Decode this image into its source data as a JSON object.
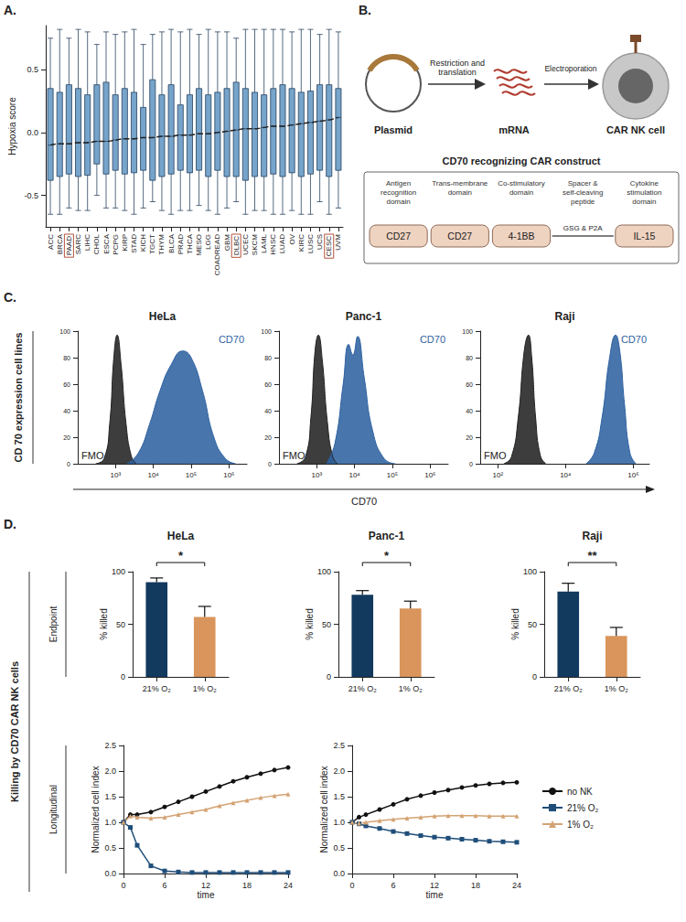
{
  "panel_letters": [
    "A.",
    "B.",
    "C.",
    "D."
  ],
  "diagram": {
    "steps": [
      "Plasmid",
      "mRNA",
      "CAR NK cell"
    ],
    "arrows": [
      "Restriction and translation",
      "Electroporation"
    ],
    "construct": {
      "title": "CD70 recognizing CAR construct",
      "domains": [
        {
          "header": "Antigen recognition domain",
          "label": "CD27",
          "shape": "box"
        },
        {
          "header": "Trans-membrane domain",
          "label": "CD27",
          "shape": "box"
        },
        {
          "header": "Co-stimulatory domain",
          "label": "4-1BB",
          "shape": "box"
        },
        {
          "header": "Spacer & self-cleaving peptide",
          "label": "GSG & P2A",
          "shape": "line"
        },
        {
          "header": "Cytokine stimulation domain",
          "label": "IL-15",
          "shape": "box"
        }
      ]
    }
  },
  "labels": {
    "c_row": "CD 70 expression cell lines",
    "c_x_axis": "CD70",
    "d_row": "Killing by CD70 CAR NK cells",
    "d_endpoint": "Endpoint",
    "d_longitudinal": "Longitudinal"
  },
  "chart_data": [
    {
      "type": "boxplot",
      "y_label": "Hypoxia score",
      "color": "#4a86b8",
      "line_style": "dashed",
      "categories": [
        "ACC",
        "BRCA",
        "PAAD",
        "SARC",
        "LIHC",
        "CHOL",
        "ESCA",
        "PCPG",
        "KIRP",
        "STAD",
        "KICH",
        "TGCT",
        "THYM",
        "BLCA",
        "PRAD",
        "THCA",
        "MESO",
        "LGG",
        "COADREAD",
        "GBM",
        "DLBC",
        "UCEC",
        "SKCM",
        "LAML",
        "HNSC",
        "LUAD",
        "OV",
        "KIRC",
        "LUSC",
        "UCS",
        "CESC",
        "UVM"
      ],
      "highlighted": [
        "PAAD",
        "DLBC",
        "CESC"
      ],
      "boxes": [
        [
          -0.65,
          -0.38,
          -0.1,
          0.35,
          0.75
        ],
        [
          -0.65,
          -0.35,
          -0.09,
          0.32,
          0.82
        ],
        [
          -0.6,
          -0.33,
          -0.09,
          0.38,
          0.75
        ],
        [
          -0.62,
          -0.35,
          -0.08,
          0.35,
          0.82
        ],
        [
          -0.62,
          -0.34,
          -0.08,
          0.3,
          0.8
        ],
        [
          -0.5,
          -0.25,
          -0.07,
          0.38,
          0.7
        ],
        [
          -0.6,
          -0.33,
          -0.07,
          0.4,
          0.8
        ],
        [
          -0.6,
          -0.3,
          -0.06,
          0.3,
          0.78
        ],
        [
          -0.62,
          -0.33,
          -0.05,
          0.35,
          0.8
        ],
        [
          -0.65,
          -0.32,
          -0.05,
          0.32,
          0.82
        ],
        [
          -0.6,
          -0.3,
          -0.04,
          0.2,
          0.7
        ],
        [
          -0.55,
          -0.38,
          -0.04,
          0.42,
          0.78
        ],
        [
          -0.62,
          -0.35,
          -0.03,
          0.3,
          0.8
        ],
        [
          -0.65,
          -0.33,
          -0.03,
          0.38,
          0.82
        ],
        [
          -0.62,
          -0.3,
          -0.02,
          0.22,
          0.8
        ],
        [
          -0.62,
          -0.32,
          -0.02,
          0.3,
          0.82
        ],
        [
          -0.58,
          -0.3,
          -0.01,
          0.35,
          0.78
        ],
        [
          -0.62,
          -0.35,
          -0.01,
          0.3,
          0.82
        ],
        [
          -0.65,
          -0.3,
          0.0,
          0.32,
          0.8
        ],
        [
          -0.6,
          -0.35,
          0.01,
          0.35,
          0.8
        ],
        [
          -0.55,
          -0.35,
          0.02,
          0.4,
          0.75
        ],
        [
          -0.65,
          -0.38,
          0.03,
          0.35,
          0.82
        ],
        [
          -0.62,
          -0.35,
          0.03,
          0.32,
          0.82
        ],
        [
          -0.62,
          -0.35,
          0.04,
          0.3,
          0.82
        ],
        [
          -0.65,
          -0.33,
          0.05,
          0.35,
          0.82
        ],
        [
          -0.65,
          -0.35,
          0.05,
          0.38,
          0.82
        ],
        [
          -0.62,
          -0.32,
          0.06,
          0.35,
          0.8
        ],
        [
          -0.65,
          -0.35,
          0.07,
          0.32,
          0.82
        ],
        [
          -0.65,
          -0.33,
          0.08,
          0.33,
          0.82
        ],
        [
          -0.55,
          -0.3,
          0.09,
          0.38,
          0.78
        ],
        [
          -0.65,
          -0.35,
          0.1,
          0.38,
          0.82
        ],
        [
          -0.6,
          -0.3,
          0.12,
          0.35,
          0.8
        ]
      ],
      "ylim": [
        -0.75,
        0.85
      ],
      "yticks": [
        -0.5,
        {
          "value": 0,
          "label": "0.0"
        },
        0.5
      ]
    },
    {
      "type": "area",
      "title": "HeLa",
      "log": "x",
      "xlim": [
        100,
        3000000
      ],
      "xticks": [
        {
          "value": 1000,
          "label": "10³"
        },
        {
          "value": 10000,
          "label": "10⁴"
        },
        {
          "value": 100000,
          "label": "10⁵"
        },
        {
          "value": 1000000,
          "label": "10⁶"
        }
      ],
      "ylim": [
        0,
        100
      ],
      "yticks": [
        0,
        20,
        40,
        60,
        80,
        100
      ],
      "series": [
        {
          "name": "FMO",
          "color": "#222222",
          "x": [
            300,
            500,
            700,
            900,
            1100,
            1400,
            1900,
            2600,
            3500
          ],
          "values": [
            0,
            4,
            30,
            80,
            97,
            75,
            30,
            6,
            0
          ]
        },
        {
          "name": "CD70",
          "color": "#2f62a0",
          "x": [
            2000,
            4000,
            8000,
            15000,
            30000,
            60000,
            100000,
            200000,
            400000,
            800000,
            1500000
          ],
          "values": [
            0,
            8,
            30,
            55,
            75,
            85,
            80,
            55,
            20,
            4,
            0
          ]
        }
      ]
    },
    {
      "type": "area",
      "title": "Panc-1",
      "log": "x",
      "xlim": [
        100,
        3000000
      ],
      "xticks": [
        {
          "value": 1000,
          "label": "10³"
        },
        {
          "value": 10000,
          "label": "10⁴"
        },
        {
          "value": 100000,
          "label": "10⁵"
        },
        {
          "value": 1000000,
          "label": "10⁶"
        }
      ],
      "ylim": [
        0,
        100
      ],
      "yticks": [
        0,
        20,
        40,
        60,
        80,
        100
      ],
      "series": [
        {
          "name": "FMO",
          "color": "#222222",
          "x": [
            300,
            500,
            700,
            900,
            1100,
            1400,
            1900,
            2600,
            3500
          ],
          "values": [
            0,
            5,
            35,
            85,
            97,
            78,
            32,
            6,
            0
          ]
        },
        {
          "name": "CD70",
          "color": "#2f62a0",
          "x": [
            1800,
            3000,
            5000,
            7000,
            9000,
            12000,
            18000,
            30000,
            60000,
            120000
          ],
          "values": [
            0,
            15,
            60,
            90,
            82,
            96,
            65,
            25,
            4,
            0
          ]
        }
      ]
    },
    {
      "type": "area",
      "title": "Raji",
      "log": "x",
      "xlim": [
        30,
        3000000
      ],
      "xticks": [
        {
          "value": 100,
          "label": "10²"
        },
        {
          "value": 10000,
          "label": "10⁴"
        },
        {
          "value": 1000000,
          "label": "10⁶"
        }
      ],
      "ylim": [
        0,
        100
      ],
      "yticks": [
        0,
        20,
        40,
        60,
        80,
        100
      ],
      "series": [
        {
          "name": "FMO",
          "color": "#222222",
          "x": [
            150,
            250,
            400,
            600,
            800,
            1000,
            1300,
            1800,
            2600
          ],
          "values": [
            0,
            5,
            35,
            85,
            97,
            80,
            35,
            6,
            0
          ]
        },
        {
          "name": "CD70",
          "color": "#2f62a0",
          "x": [
            40000,
            70000,
            120000,
            200000,
            300000,
            400000,
            550000,
            800000,
            1200000
          ],
          "values": [
            0,
            8,
            35,
            80,
            97,
            85,
            45,
            8,
            0
          ]
        }
      ]
    },
    {
      "type": "bar",
      "title": "HeLa",
      "y_label": "% killed",
      "categories": [
        "21% O₂",
        "1% O₂"
      ],
      "values": [
        90,
        57
      ],
      "errors": [
        4,
        10
      ],
      "colors": [
        "#12395e",
        "#d9955b"
      ],
      "significance": "*",
      "ylim": [
        0,
        100
      ],
      "yticks": [
        0,
        50,
        100
      ]
    },
    {
      "type": "bar",
      "title": "Panc-1",
      "y_label": "% killed",
      "categories": [
        "21% O₂",
        "1% O₂"
      ],
      "values": [
        78,
        65
      ],
      "errors": [
        4,
        7
      ],
      "colors": [
        "#12395e",
        "#d9955b"
      ],
      "significance": "*",
      "ylim": [
        0,
        100
      ],
      "yticks": [
        0,
        50,
        100
      ]
    },
    {
      "type": "bar",
      "title": "Raji",
      "y_label": "% killed",
      "categories": [
        "21% O₂",
        "1% O₂"
      ],
      "values": [
        81,
        39
      ],
      "errors": [
        8,
        8
      ],
      "colors": [
        "#12395e",
        "#d9955b"
      ],
      "significance": "**",
      "ylim": [
        0,
        100
      ],
      "yticks": [
        0,
        50,
        100
      ]
    },
    {
      "type": "line",
      "x_label": "time",
      "y_label": "Normalized cell index",
      "x": [
        0,
        1,
        2,
        4,
        6,
        8,
        10,
        12,
        14,
        16,
        18,
        20,
        22,
        24
      ],
      "xlim": [
        0,
        24
      ],
      "xticks": [
        0,
        6,
        12,
        18,
        24
      ],
      "ylim": [
        0,
        2.5
      ],
      "yticks": [
        {
          "value": 0,
          "label": "0.0"
        },
        0.5,
        {
          "value": 1,
          "label": "1.0"
        },
        1.5,
        {
          "value": 2,
          "label": "2.0"
        },
        2.5
      ],
      "series": [
        {
          "name": "no NK",
          "color": "#111111",
          "marker": "circle",
          "values": [
            1.0,
            1.15,
            1.15,
            1.2,
            1.3,
            1.4,
            1.5,
            1.6,
            1.7,
            1.8,
            1.88,
            1.95,
            2.02,
            2.07
          ]
        },
        {
          "name": "21% O₂",
          "color": "#1f4e79",
          "marker": "square",
          "values": [
            1.0,
            0.9,
            0.55,
            0.15,
            0.05,
            0.03,
            0.02,
            0.02,
            0.02,
            0.02,
            0.02,
            0.02,
            0.02,
            0.02
          ]
        },
        {
          "name": "1% O₂",
          "color": "#d4a373",
          "marker": "triangle",
          "values": [
            1.0,
            1.12,
            1.1,
            1.08,
            1.1,
            1.15,
            1.2,
            1.25,
            1.32,
            1.38,
            1.43,
            1.48,
            1.52,
            1.55
          ]
        }
      ]
    },
    {
      "type": "line",
      "x_label": "time",
      "y_label": "Normalized cell index",
      "legend": "right",
      "x": [
        0,
        1,
        2,
        4,
        6,
        8,
        10,
        12,
        14,
        16,
        18,
        20,
        22,
        24
      ],
      "xlim": [
        0,
        24
      ],
      "xticks": [
        0,
        6,
        12,
        18,
        24
      ],
      "ylim": [
        0,
        2.5
      ],
      "yticks": [
        {
          "value": 0,
          "label": "0.0"
        },
        0.5,
        {
          "value": 1,
          "label": "1.0"
        },
        1.5,
        {
          "value": 2,
          "label": "2.0"
        },
        2.5
      ],
      "series": [
        {
          "name": "no NK",
          "color": "#111111",
          "marker": "circle",
          "values": [
            1.0,
            1.1,
            1.15,
            1.25,
            1.35,
            1.45,
            1.52,
            1.58,
            1.63,
            1.68,
            1.72,
            1.75,
            1.77,
            1.78
          ]
        },
        {
          "name": "21% O₂",
          "color": "#1f4e79",
          "marker": "square",
          "values": [
            1.0,
            0.97,
            0.93,
            0.88,
            0.82,
            0.78,
            0.74,
            0.71,
            0.69,
            0.67,
            0.65,
            0.63,
            0.62,
            0.61
          ]
        },
        {
          "name": "1% O₂",
          "color": "#d4a373",
          "marker": "triangle",
          "values": [
            1.0,
            0.98,
            1.0,
            1.03,
            1.06,
            1.08,
            1.1,
            1.12,
            1.13,
            1.13,
            1.13,
            1.12,
            1.12,
            1.12
          ]
        }
      ]
    }
  ]
}
